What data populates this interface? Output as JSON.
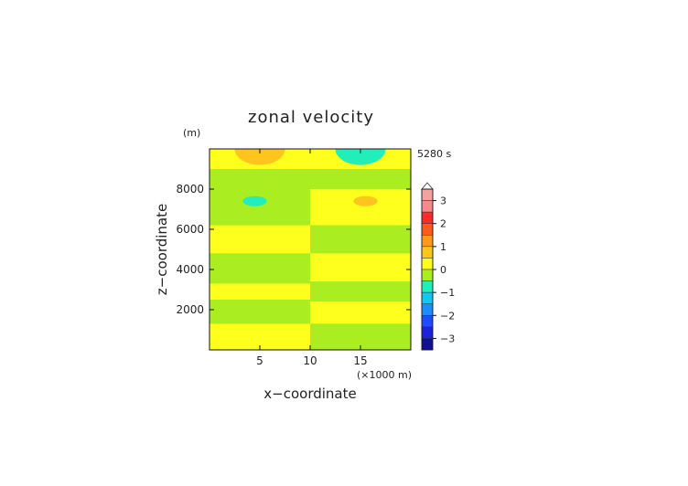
{
  "chart_data": {
    "type": "heatmap",
    "title": "zonal velocity",
    "time_label": "5280 s",
    "xlabel": "x−coordinate",
    "ylabel": "z−coordinate",
    "x_unit": "(×1000 m)",
    "y_unit": "(m)",
    "xlim": [
      0,
      20
    ],
    "ylim": [
      0,
      10000
    ],
    "x_ticks": [
      5,
      10,
      15
    ],
    "y_ticks": [
      2000,
      4000,
      6000,
      8000
    ],
    "x_tick_labels": [
      "5",
      "10",
      "15"
    ],
    "y_tick_labels": [
      "2000",
      "4000",
      "6000",
      "8000"
    ],
    "colorbar": {
      "tick_values": [
        3,
        2,
        1,
        0,
        -1,
        -2,
        -3
      ],
      "tick_labels": [
        "3",
        "2",
        "1",
        "0",
        "−1",
        "−2",
        "−3"
      ],
      "levels": [
        {
          "from": 3.0,
          "to": 3.5,
          "color": "#f7a0a0"
        },
        {
          "from": 2.5,
          "to": 3.0,
          "color": "#f58a8a"
        },
        {
          "from": 2.0,
          "to": 2.5,
          "color": "#ff2a2a"
        },
        {
          "from": 1.5,
          "to": 2.0,
          "color": "#ff5a1e"
        },
        {
          "from": 1.0,
          "to": 1.5,
          "color": "#ff9a1e"
        },
        {
          "from": 0.5,
          "to": 1.0,
          "color": "#ffc41e"
        },
        {
          "from": 0.0,
          "to": 0.5,
          "color": "#ffff1e"
        },
        {
          "from": -0.5,
          "to": 0.0,
          "color": "#aaee22"
        },
        {
          "from": -1.0,
          "to": -0.5,
          "color": "#22eebb"
        },
        {
          "from": -1.5,
          "to": -1.0,
          "color": "#11c8ee"
        },
        {
          "from": -2.0,
          "to": -1.5,
          "color": "#1e8cff"
        },
        {
          "from": -2.5,
          "to": -2.0,
          "color": "#1e4cff"
        },
        {
          "from": -3.0,
          "to": -2.5,
          "color": "#1e22dd"
        },
        {
          "from": -3.5,
          "to": -3.0,
          "color": "#101090"
        }
      ]
    },
    "bands_left": [
      {
        "value": 0.25,
        "z_bottom": 9000,
        "z_top": 10000
      },
      {
        "value": -0.25,
        "z_bottom": 6500,
        "z_top": 8000
      },
      {
        "value": 0.25,
        "z_bottom": 4800,
        "z_top": 6200
      },
      {
        "value": -0.25,
        "z_bottom": 3300,
        "z_top": 4800
      },
      {
        "value": 0.25,
        "z_bottom": 2500,
        "z_top": 3300
      },
      {
        "value": -0.25,
        "z_bottom": 1300,
        "z_top": 2500
      },
      {
        "value": 0.25,
        "z_bottom": 0,
        "z_top": 1300
      }
    ],
    "bands_right": [
      {
        "value": 0.25,
        "z_bottom": 9000,
        "z_top": 10000
      },
      {
        "value": 0.25,
        "z_bottom": 6200,
        "z_top": 8000
      },
      {
        "value": -0.25,
        "z_bottom": 4800,
        "z_top": 6200
      },
      {
        "value": 0.25,
        "z_bottom": 3400,
        "z_top": 4800
      },
      {
        "value": -0.25,
        "z_bottom": 2400,
        "z_top": 3400
      },
      {
        "value": 0.25,
        "z_bottom": 1300,
        "z_top": 2400
      },
      {
        "value": -0.25,
        "z_bottom": 0,
        "z_top": 1300
      }
    ],
    "background_value": -0.25,
    "blobs": [
      {
        "x": 5,
        "z": 10000,
        "rx": 2.5,
        "rz": 800,
        "value": 0.75
      },
      {
        "x": 15,
        "z": 10000,
        "rx": 2.5,
        "rz": 800,
        "value": -0.75
      },
      {
        "x": 4.5,
        "z": 7400,
        "rx": 1.2,
        "rz": 250,
        "value": -0.75
      },
      {
        "x": 15.5,
        "z": 7400,
        "rx": 1.2,
        "rz": 250,
        "value": 0.75
      }
    ]
  }
}
